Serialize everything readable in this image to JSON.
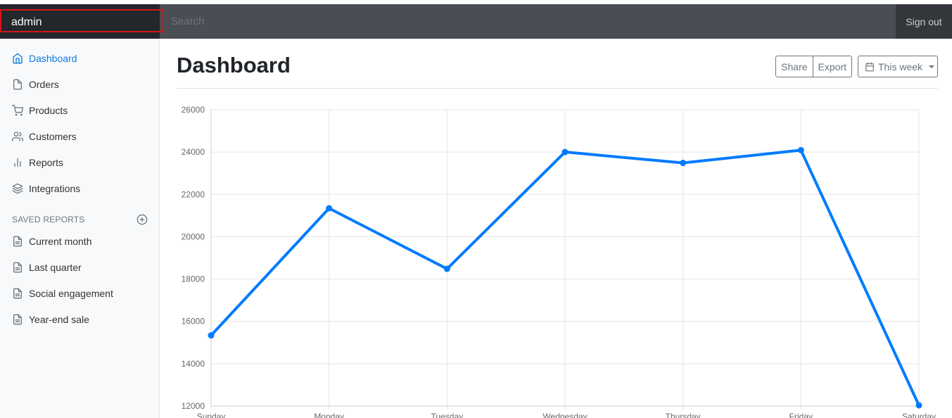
{
  "topbar": {
    "brand": "admin",
    "search_placeholder": "Search",
    "signout_label": "Sign out"
  },
  "sidebar": {
    "items": [
      {
        "label": "Dashboard",
        "icon": "home-icon",
        "active": true
      },
      {
        "label": "Orders",
        "icon": "file-icon"
      },
      {
        "label": "Products",
        "icon": "shopping-cart-icon"
      },
      {
        "label": "Customers",
        "icon": "users-icon"
      },
      {
        "label": "Reports",
        "icon": "bar-chart-icon"
      },
      {
        "label": "Integrations",
        "icon": "layers-icon"
      }
    ],
    "saved_heading": "Saved reports",
    "saved_items": [
      {
        "label": "Current month",
        "icon": "file-text-icon"
      },
      {
        "label": "Last quarter",
        "icon": "file-text-icon"
      },
      {
        "label": "Social engagement",
        "icon": "file-text-icon"
      },
      {
        "label": "Year-end sale",
        "icon": "file-text-icon"
      }
    ]
  },
  "main": {
    "title": "Dashboard",
    "share_label": "Share",
    "export_label": "Export",
    "period_label": "This week"
  },
  "colors": {
    "accent": "#007bff",
    "brand_bg": "#23272c",
    "topbar_bg": "#4a4e54"
  },
  "chart_data": {
    "type": "line",
    "categories": [
      "Sunday",
      "Monday",
      "Tuesday",
      "Wednesday",
      "Thursday",
      "Friday",
      "Saturday"
    ],
    "series": [
      {
        "values": [
          15339,
          21345,
          18483,
          24003,
          23489,
          24092,
          12034
        ],
        "color": "#007bff"
      }
    ],
    "ylim": [
      12000,
      26000
    ],
    "yticks": [
      12000,
      14000,
      16000,
      18000,
      20000,
      22000,
      24000,
      26000
    ],
    "grid": true,
    "legend": "none"
  }
}
